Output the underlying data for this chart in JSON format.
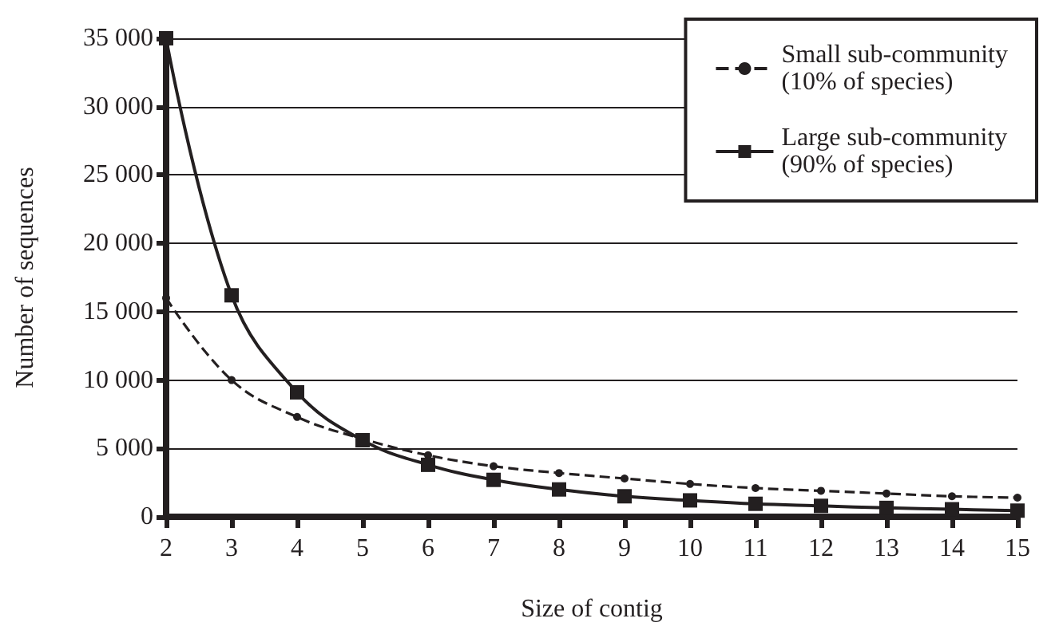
{
  "chart_data": {
    "type": "line",
    "xlabel": "Size of contig",
    "ylabel": "Number of sequences",
    "categories": [
      "2",
      "3",
      "4",
      "5",
      "6",
      "7",
      "8",
      "9",
      "10",
      "11",
      "12",
      "13",
      "14",
      "15"
    ],
    "series": [
      {
        "name": "Small sub-community\n(10% of species)",
        "color": "#231f20",
        "marker": "circle",
        "line_style": "dashed",
        "values": [
          16000,
          10000,
          7300,
          5700,
          4500,
          3700,
          3200,
          2800,
          2400,
          2100,
          1900,
          1700,
          1500,
          1400
        ]
      },
      {
        "name": "Large sub-community\n(90% of species)",
        "color": "#231f20",
        "marker": "square",
        "line_style": "solid",
        "values": [
          35000,
          16200,
          9100,
          5600,
          3800,
          2700,
          2000,
          1500,
          1200,
          950,
          800,
          650,
          550,
          450
        ]
      }
    ],
    "ylim": [
      0,
      35000
    ],
    "yticks": [
      {
        "value": 0,
        "label": "0"
      },
      {
        "value": 5000,
        "label": "5 000"
      },
      {
        "value": 10000,
        "label": "10 000"
      },
      {
        "value": 15000,
        "label": "15 000"
      },
      {
        "value": 20000,
        "label": "20 000"
      },
      {
        "value": 25000,
        "label": "25 000"
      },
      {
        "value": 30000,
        "label": "30 000"
      },
      {
        "value": 35000,
        "label": "35 000"
      }
    ],
    "grid": "y",
    "legend": "top right"
  }
}
